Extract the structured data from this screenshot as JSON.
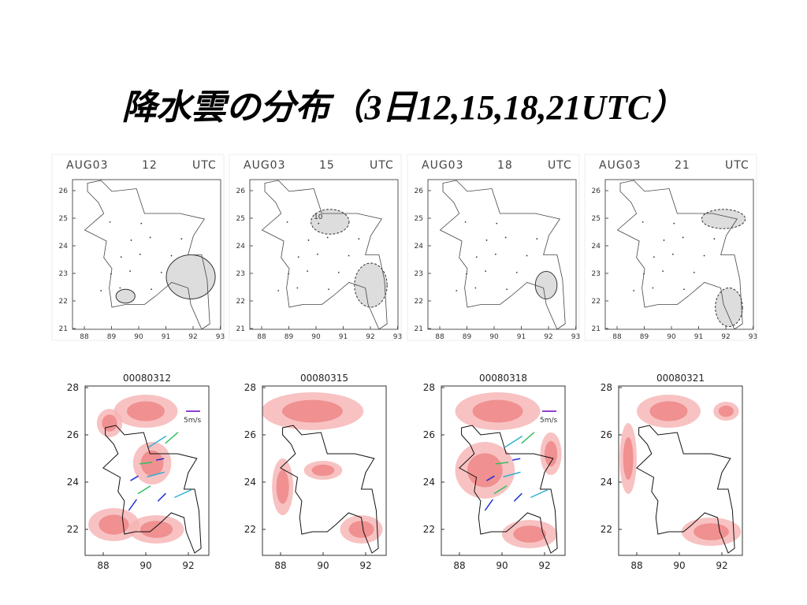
{
  "title": "降水雲の分布（3日12,15,18,21UTC）",
  "top_panels": [
    {
      "title": [
        "AUG03",
        "12",
        "UTC"
      ]
    },
    {
      "title": [
        "AUG03",
        "15",
        "UTC"
      ],
      "contour_label": "10"
    },
    {
      "title": [
        "AUG03",
        "18",
        "UTC"
      ]
    },
    {
      "title": [
        "AUG03",
        "21",
        "UTC"
      ]
    }
  ],
  "top_axis": {
    "yticks": [
      "26",
      "25",
      "24",
      "23",
      "22",
      "21"
    ],
    "xticks": [
      "88",
      "89",
      "90",
      "91",
      "92",
      "93"
    ]
  },
  "bottom_panels": [
    {
      "title": "00080312",
      "legend": "5m/s"
    },
    {
      "title": "00080315"
    },
    {
      "title": "00080318",
      "legend": "5m/s"
    },
    {
      "title": "00080321"
    }
  ],
  "bottom_axis": {
    "yticks": [
      "28",
      "26",
      "24",
      "22"
    ],
    "xticks": [
      "88",
      "90",
      "92"
    ]
  }
}
